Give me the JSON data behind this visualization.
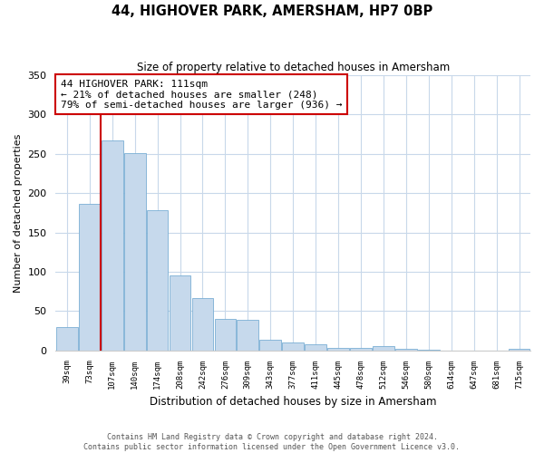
{
  "title": "44, HIGHOVER PARK, AMERSHAM, HP7 0BP",
  "subtitle": "Size of property relative to detached houses in Amersham",
  "xlabel": "Distribution of detached houses by size in Amersham",
  "ylabel": "Number of detached properties",
  "bar_labels": [
    "39sqm",
    "73sqm",
    "107sqm",
    "140sqm",
    "174sqm",
    "208sqm",
    "242sqm",
    "276sqm",
    "309sqm",
    "343sqm",
    "377sqm",
    "411sqm",
    "445sqm",
    "478sqm",
    "512sqm",
    "546sqm",
    "580sqm",
    "614sqm",
    "647sqm",
    "681sqm",
    "715sqm"
  ],
  "bar_values": [
    30,
    186,
    267,
    251,
    178,
    95,
    66,
    40,
    39,
    14,
    10,
    8,
    3,
    3,
    5,
    2,
    1,
    0,
    0,
    0,
    2
  ],
  "bar_color": "#c6d9ec",
  "bar_edge_color": "#7aafd4",
  "vline_color": "#cc0000",
  "annotation_title": "44 HIGHOVER PARK: 111sqm",
  "annotation_line1": "← 21% of detached houses are smaller (248)",
  "annotation_line2": "79% of semi-detached houses are larger (936) →",
  "annotation_box_facecolor": "#ffffff",
  "annotation_box_edgecolor": "#cc0000",
  "ylim": [
    0,
    350
  ],
  "yticks": [
    0,
    50,
    100,
    150,
    200,
    250,
    300,
    350
  ],
  "grid_color": "#c8d8ea",
  "footer_line1": "Contains HM Land Registry data © Crown copyright and database right 2024.",
  "footer_line2": "Contains public sector information licensed under the Open Government Licence v3.0.",
  "bg_color": "#ffffff"
}
